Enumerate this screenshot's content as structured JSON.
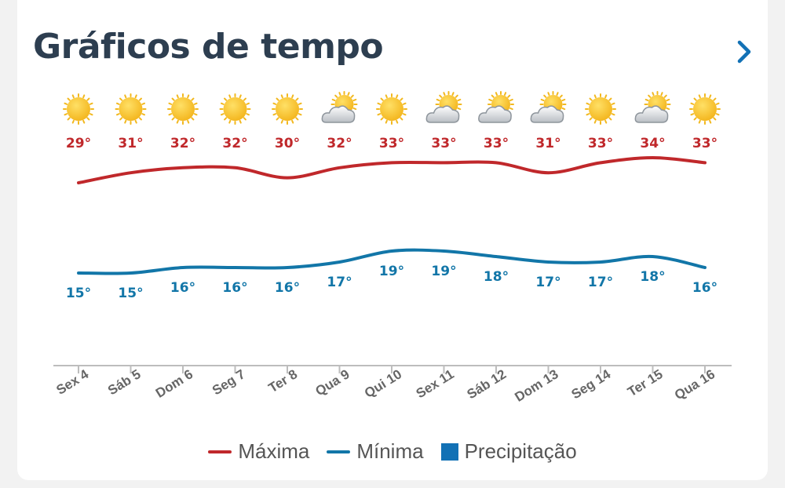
{
  "header": {
    "title": "Gráficos de tempo"
  },
  "colors": {
    "max": "#c0282b",
    "min": "#1276a8",
    "precip": "#1271b5",
    "axis": "#bdbdbd",
    "label": "#666666"
  },
  "chart_data": {
    "type": "line",
    "categories": [
      "Sex 4",
      "Sáb 5",
      "Dom 6",
      "Seg 7",
      "Ter 8",
      "Qua 9",
      "Qui 10",
      "Sex 11",
      "Sáb 12",
      "Dom 13",
      "Seg 14",
      "Ter 15",
      "Qua 16"
    ],
    "icons": [
      "sun-icon",
      "sun-icon",
      "sun-icon",
      "sun-icon",
      "sun-icon",
      "partly-cloudy-icon",
      "sun-icon",
      "partly-cloudy-icon",
      "partly-cloudy-icon",
      "partly-cloudy-icon",
      "sun-icon",
      "partly-cloudy-icon",
      "sun-icon"
    ],
    "series": [
      {
        "name": "Máxima",
        "values": [
          29,
          31,
          32,
          32,
          30,
          32,
          33,
          33,
          33,
          31,
          33,
          34,
          33
        ],
        "labels": [
          "29°",
          "31°",
          "32°",
          "32°",
          "30°",
          "32°",
          "33°",
          "33°",
          "33°",
          "31°",
          "33°",
          "34°",
          "33°"
        ]
      },
      {
        "name": "Mínima",
        "values": [
          15,
          15,
          16,
          16,
          16,
          17,
          19,
          19,
          18,
          17,
          17,
          18,
          16
        ],
        "labels": [
          "15°",
          "15°",
          "16°",
          "16°",
          "16°",
          "17°",
          "19°",
          "19°",
          "18°",
          "17°",
          "17°",
          "18°",
          "16°"
        ]
      },
      {
        "name": "Precipitação",
        "values": [
          0,
          0,
          0,
          0,
          0,
          0,
          0,
          0,
          0,
          0,
          0,
          0,
          0
        ]
      }
    ],
    "legend": [
      "Máxima",
      "Mínima",
      "Precipitação"
    ],
    "legend_position": "bottom"
  }
}
